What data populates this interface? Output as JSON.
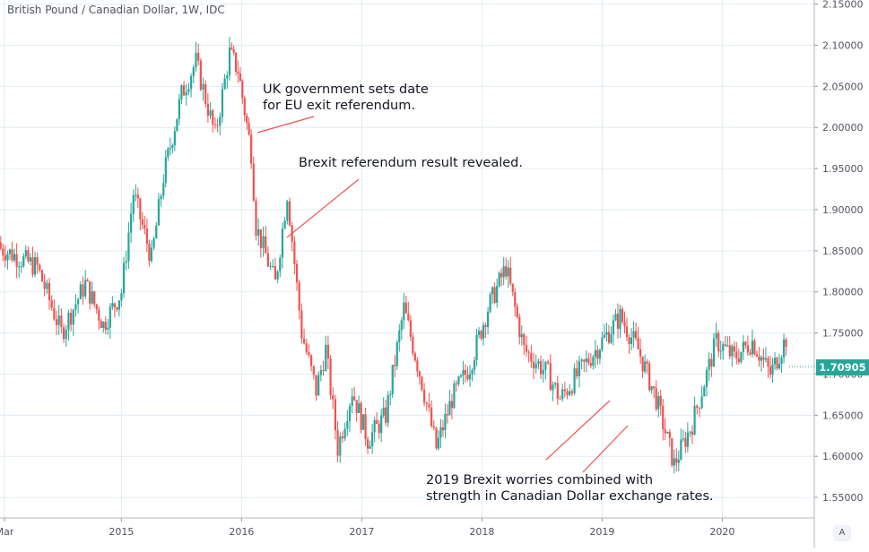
{
  "chart_data": {
    "type": "candlestick",
    "title": "British Pound / Canadian Dollar, 1W, IDC",
    "ylim": [
      1.525,
      2.155
    ],
    "y_ticks": [
      1.55,
      1.6,
      1.65,
      1.7,
      1.75,
      1.8,
      1.85,
      1.9,
      1.95,
      2.0,
      2.05,
      2.1,
      2.15
    ],
    "y_tick_labels": [
      "1.55000",
      "1.60000",
      "1.65000",
      "1.70000",
      "1.75000",
      "1.80000",
      "1.85000",
      "1.90000",
      "1.95000",
      "2.00000",
      "2.05000",
      "2.10000",
      "2.15000"
    ],
    "x_tick_labels": [
      "Mar",
      "2015",
      "2016",
      "2017",
      "2018",
      "2019",
      "2020"
    ],
    "grid": true,
    "up_color": "#26a69a",
    "down_color": "#ef5350",
    "last_price": "1.70905",
    "path": [
      [
        2013.9,
        1.86
      ],
      [
        2014.3,
        1.83
      ],
      [
        2014.5,
        1.75
      ],
      [
        2014.7,
        1.81
      ],
      [
        2014.85,
        1.76
      ],
      [
        2015.0,
        1.8
      ],
      [
        2015.1,
        1.92
      ],
      [
        2015.25,
        1.84
      ],
      [
        2015.35,
        1.94
      ],
      [
        2015.5,
        2.04
      ],
      [
        2015.62,
        2.08
      ],
      [
        2015.78,
        1.99
      ],
      [
        2015.9,
        2.09
      ],
      [
        2015.97,
        2.07
      ],
      [
        2016.08,
        1.97
      ],
      [
        2016.12,
        1.88
      ],
      [
        2016.28,
        1.81
      ],
      [
        2016.38,
        1.92
      ],
      [
        2016.5,
        1.75
      ],
      [
        2016.62,
        1.68
      ],
      [
        2016.7,
        1.73
      ],
      [
        2016.8,
        1.61
      ],
      [
        2016.92,
        1.68
      ],
      [
        2017.05,
        1.62
      ],
      [
        2017.2,
        1.65
      ],
      [
        2017.35,
        1.78
      ],
      [
        2017.5,
        1.69
      ],
      [
        2017.62,
        1.61
      ],
      [
        2017.75,
        1.67
      ],
      [
        2017.9,
        1.71
      ],
      [
        2018.05,
        1.78
      ],
      [
        2018.2,
        1.83
      ],
      [
        2018.35,
        1.73
      ],
      [
        2018.55,
        1.7
      ],
      [
        2018.65,
        1.67
      ],
      [
        2018.85,
        1.71
      ],
      [
        2019.15,
        1.77
      ],
      [
        2019.3,
        1.73
      ],
      [
        2019.45,
        1.67
      ],
      [
        2019.6,
        1.59
      ],
      [
        2019.75,
        1.64
      ],
      [
        2019.95,
        1.74
      ],
      [
        2020.1,
        1.72
      ],
      [
        2020.25,
        1.74
      ],
      [
        2020.4,
        1.7
      ],
      [
        2020.55,
        1.75
      ],
      [
        2020.7,
        1.71
      ]
    ]
  },
  "annotations": [
    {
      "text": "UK government sets date\nfor EU exit referendum."
    },
    {
      "text": "Brexit referendum result revealed."
    },
    {
      "text": "2019 Brexit worries combined with\nstrength in Canadian Dollar exchange rates."
    }
  ],
  "colors": {
    "grid": "#e1ecf2",
    "axis_text": "#50535e",
    "arrow": "#ef5350",
    "badge": "#26a69a"
  },
  "auto_scale_label": "A"
}
